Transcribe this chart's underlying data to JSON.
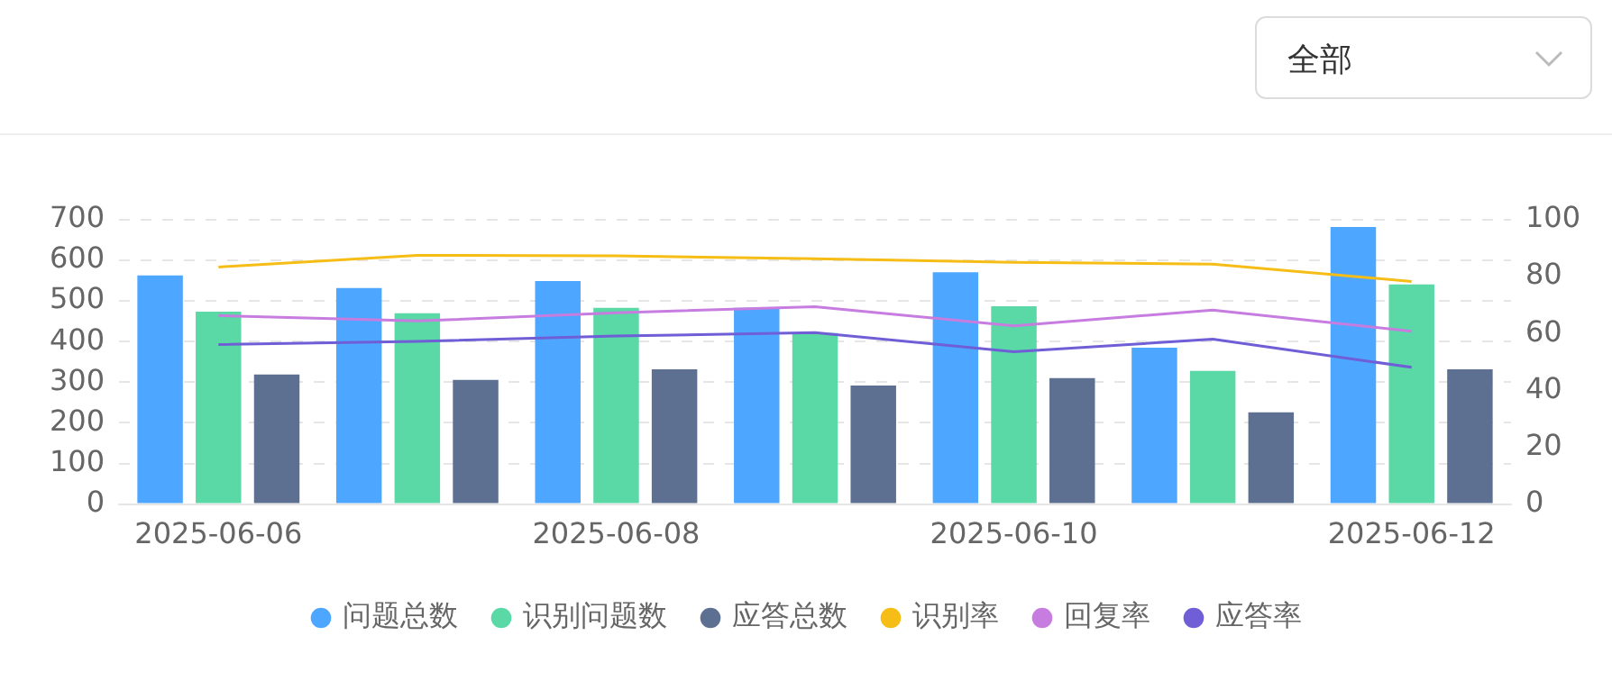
{
  "chart_data": {
    "type": "bar",
    "categories": [
      "2025-06-06",
      null,
      "2025-06-08",
      null,
      "2025-06-10",
      null,
      "2025-06-12"
    ],
    "series": [
      {
        "name": "问题总数",
        "color": "#4da6ff",
        "values": [
          563,
          532,
          549,
          483,
          571,
          385,
          682
        ]
      },
      {
        "name": "识别问题数",
        "color": "#5ad8a6",
        "values": [
          474,
          470,
          483,
          421,
          487,
          328,
          541
        ]
      },
      {
        "name": "应答总数",
        "color": "#5d7092",
        "values": [
          319,
          306,
          332,
          292,
          310,
          226,
          332
        ]
      },
      {
        "name": "识别率",
        "type": "line",
        "axis": "y2",
        "color": "#f6bd16",
        "values": [
          83.4,
          87.5,
          87.3,
          86.3,
          85,
          84.4,
          78.3
        ]
      },
      {
        "name": "回复率",
        "type": "line",
        "axis": "y2",
        "color": "#c77de0",
        "values": [
          66.3,
          64.4,
          67.3,
          69.4,
          62.7,
          68.2,
          60.8
        ]
      },
      {
        "name": "应答率",
        "type": "line",
        "axis": "y2",
        "color": "#6f5ed6",
        "values": [
          56.1,
          57.2,
          59.1,
          60.3,
          53.6,
          58,
          48.1
        ]
      }
    ],
    "ylim": [
      0,
      700
    ],
    "yticks": [
      0,
      100,
      200,
      300,
      400,
      500,
      600,
      700
    ],
    "y2lim": [
      0,
      100
    ],
    "y2ticks": [
      0,
      20,
      40,
      60,
      80,
      100
    ],
    "grid": "y",
    "legend": "bottom",
    "marker": "none",
    "line_style": "solid",
    "annotations": [
      "全部"
    ]
  }
}
